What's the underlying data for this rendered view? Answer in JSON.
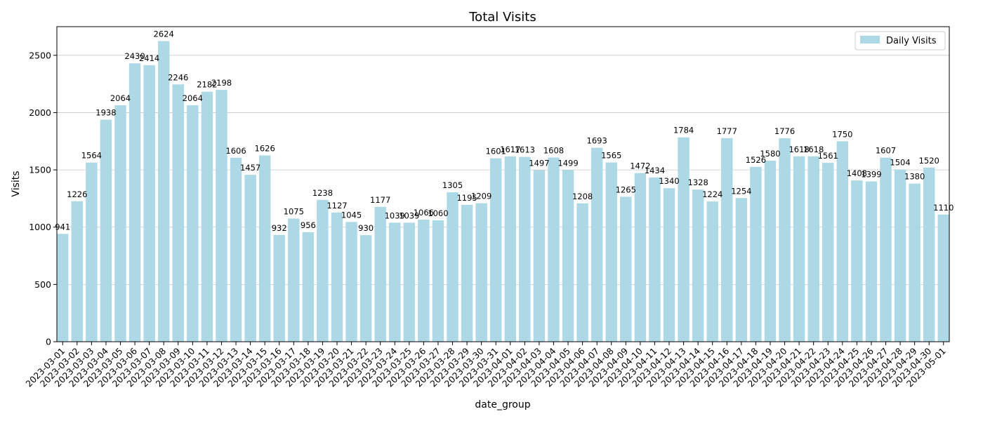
{
  "chart_data": {
    "type": "bar",
    "title": "Total Visits",
    "xlabel": "date_group",
    "ylabel": "Visits",
    "ylim": [
      0,
      2750
    ],
    "yticks": [
      0,
      500,
      1000,
      1500,
      2000,
      2500
    ],
    "grid": "horizontal",
    "legend": {
      "placement": "top-right",
      "entries": [
        "Daily Visits"
      ]
    },
    "bar_color": "#add8e6",
    "series": [
      {
        "name": "Daily Visits"
      }
    ],
    "categories": [
      "2023-03-01",
      "2023-03-02",
      "2023-03-03",
      "2023-03-04",
      "2023-03-05",
      "2023-03-06",
      "2023-03-07",
      "2023-03-08",
      "2023-03-09",
      "2023-03-10",
      "2023-03-11",
      "2023-03-12",
      "2023-03-13",
      "2023-03-14",
      "2023-03-15",
      "2023-03-16",
      "2023-03-17",
      "2023-03-18",
      "2023-03-19",
      "2023-03-20",
      "2023-03-21",
      "2023-03-22",
      "2023-03-23",
      "2023-03-24",
      "2023-03-25",
      "2023-03-26",
      "2023-03-27",
      "2023-03-28",
      "2023-03-29",
      "2023-03-30",
      "2023-03-31",
      "2023-04-01",
      "2023-04-02",
      "2023-04-03",
      "2023-04-04",
      "2023-04-05",
      "2023-04-06",
      "2023-04-07",
      "2023-04-08",
      "2023-04-09",
      "2023-04-10",
      "2023-04-11",
      "2023-04-12",
      "2023-04-13",
      "2023-04-14",
      "2023-04-15",
      "2023-04-16",
      "2023-04-17",
      "2023-04-18",
      "2023-04-19",
      "2023-04-20",
      "2023-04-21",
      "2023-04-22",
      "2023-04-23",
      "2023-04-24",
      "2023-04-25",
      "2023-04-26",
      "2023-04-27",
      "2023-04-28",
      "2023-04-29",
      "2023-04-30",
      "2023-05-01"
    ],
    "values": [
      941,
      1226,
      1564,
      1938,
      2064,
      2430,
      2414,
      2624,
      2246,
      2064,
      2182,
      2198,
      1606,
      1457,
      1626,
      932,
      1075,
      956,
      1238,
      1127,
      1045,
      930,
      1177,
      1039,
      1039,
      1066,
      1060,
      1305,
      1195,
      1209,
      1601,
      1617,
      1613,
      1497,
      1608,
      1499,
      1208,
      1693,
      1565,
      1265,
      1472,
      1434,
      1340,
      1784,
      1328,
      1224,
      1777,
      1254,
      1526,
      1580,
      1776,
      1618,
      1618,
      1561,
      1750,
      1408,
      1399,
      1607,
      1504,
      1380,
      1520,
      1110
    ]
  }
}
